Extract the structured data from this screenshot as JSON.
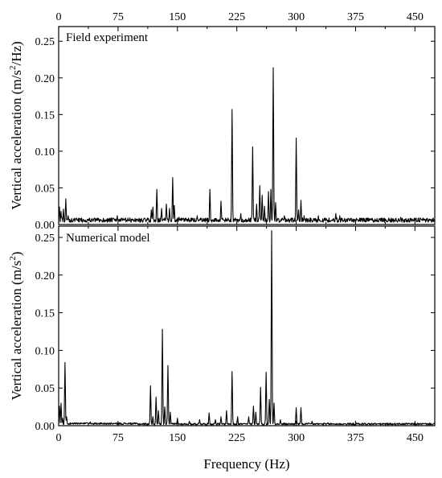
{
  "chart_data": [
    {
      "type": "line",
      "panel_label": "Field experiment",
      "ylabel": "Vertical acceleration (m/s²/Hz)",
      "ylabel_parts": {
        "pre": "Vertical acceleration (m/s",
        "sup": "2",
        "post": "/Hz)"
      },
      "xlim": [
        0,
        475
      ],
      "ylim": [
        0,
        0.27
      ],
      "yticks": [
        0.0,
        0.05,
        0.1,
        0.15,
        0.2,
        0.25
      ],
      "ytick_labels": [
        "0.00",
        "0.05",
        "0.10",
        "0.15",
        "0.20",
        "0.25"
      ],
      "xticks_top": [
        0,
        75,
        150,
        225,
        300,
        375,
        450
      ],
      "xtick_labels_top": [
        "0",
        "75",
        "150",
        "225",
        "300",
        "375",
        "450"
      ],
      "grid": false,
      "series": [
        {
          "peaks": [
            {
              "x": 1,
              "y": 0.024
            },
            {
              "x": 3,
              "y": 0.018
            },
            {
              "x": 6,
              "y": 0.021
            },
            {
              "x": 9,
              "y": 0.035
            },
            {
              "x": 12,
              "y": 0.012
            },
            {
              "x": 22,
              "y": 0.008
            },
            {
              "x": 45,
              "y": 0.007
            },
            {
              "x": 58,
              "y": 0.006
            },
            {
              "x": 74,
              "y": 0.012
            },
            {
              "x": 90,
              "y": 0.007
            },
            {
              "x": 117,
              "y": 0.02
            },
            {
              "x": 119,
              "y": 0.024
            },
            {
              "x": 124,
              "y": 0.048
            },
            {
              "x": 130,
              "y": 0.022
            },
            {
              "x": 136,
              "y": 0.028
            },
            {
              "x": 140,
              "y": 0.022
            },
            {
              "x": 144,
              "y": 0.064
            },
            {
              "x": 146,
              "y": 0.026
            },
            {
              "x": 152,
              "y": 0.01
            },
            {
              "x": 160,
              "y": 0.008
            },
            {
              "x": 175,
              "y": 0.012
            },
            {
              "x": 191,
              "y": 0.048
            },
            {
              "x": 205,
              "y": 0.032
            },
            {
              "x": 219,
              "y": 0.157
            },
            {
              "x": 230,
              "y": 0.015
            },
            {
              "x": 245,
              "y": 0.106
            },
            {
              "x": 250,
              "y": 0.028
            },
            {
              "x": 254,
              "y": 0.053
            },
            {
              "x": 257,
              "y": 0.04
            },
            {
              "x": 260,
              "y": 0.025
            },
            {
              "x": 265,
              "y": 0.045
            },
            {
              "x": 268,
              "y": 0.048
            },
            {
              "x": 271,
              "y": 0.214
            },
            {
              "x": 274,
              "y": 0.03
            },
            {
              "x": 285,
              "y": 0.012
            },
            {
              "x": 300,
              "y": 0.118
            },
            {
              "x": 303,
              "y": 0.02
            },
            {
              "x": 306,
              "y": 0.033
            },
            {
              "x": 310,
              "y": 0.012
            },
            {
              "x": 328,
              "y": 0.012
            },
            {
              "x": 350,
              "y": 0.015
            },
            {
              "x": 355,
              "y": 0.012
            },
            {
              "x": 380,
              "y": 0.008
            },
            {
              "x": 413,
              "y": 0.007
            },
            {
              "x": 432,
              "y": 0.01
            },
            {
              "x": 468,
              "y": 0.007
            }
          ]
        }
      ]
    },
    {
      "type": "line",
      "panel_label": "Numerical model",
      "ylabel": "Vertical acceleration (m/s²)",
      "ylabel_parts": {
        "pre": "Vertical acceleration (m/s",
        "sup": "2",
        "post": ")"
      },
      "xlabel": "Frequency (Hz)",
      "xlim": [
        0,
        475
      ],
      "ylim": [
        0,
        0.265
      ],
      "yticks": [
        0.0,
        0.05,
        0.1,
        0.15,
        0.2,
        0.25
      ],
      "ytick_labels": [
        "0.00",
        "0.05",
        "0.10",
        "0.15",
        "0.20",
        "0.25"
      ],
      "xticks": [
        0,
        75,
        150,
        225,
        300,
        375,
        450
      ],
      "xtick_labels": [
        "0",
        "75",
        "150",
        "225",
        "300",
        "375",
        "450"
      ],
      "grid": false,
      "series": [
        {
          "peaks": [
            {
              "x": 1,
              "y": 0.026
            },
            {
              "x": 3,
              "y": 0.03
            },
            {
              "x": 5,
              "y": 0.01
            },
            {
              "x": 8,
              "y": 0.084
            },
            {
              "x": 10,
              "y": 0.012
            },
            {
              "x": 40,
              "y": 0.005
            },
            {
              "x": 116,
              "y": 0.053
            },
            {
              "x": 119,
              "y": 0.012
            },
            {
              "x": 123,
              "y": 0.038
            },
            {
              "x": 126,
              "y": 0.02
            },
            {
              "x": 131,
              "y": 0.128
            },
            {
              "x": 134,
              "y": 0.025
            },
            {
              "x": 138,
              "y": 0.08
            },
            {
              "x": 141,
              "y": 0.018
            },
            {
              "x": 150,
              "y": 0.01
            },
            {
              "x": 165,
              "y": 0.006
            },
            {
              "x": 178,
              "y": 0.008
            },
            {
              "x": 190,
              "y": 0.017
            },
            {
              "x": 198,
              "y": 0.008
            },
            {
              "x": 205,
              "y": 0.012
            },
            {
              "x": 212,
              "y": 0.02
            },
            {
              "x": 219,
              "y": 0.072
            },
            {
              "x": 226,
              "y": 0.012
            },
            {
              "x": 240,
              "y": 0.012
            },
            {
              "x": 246,
              "y": 0.026
            },
            {
              "x": 249,
              "y": 0.018
            },
            {
              "x": 255,
              "y": 0.051
            },
            {
              "x": 262,
              "y": 0.071
            },
            {
              "x": 266,
              "y": 0.035
            },
            {
              "x": 269,
              "y": 0.259
            },
            {
              "x": 272,
              "y": 0.03
            },
            {
              "x": 280,
              "y": 0.008
            },
            {
              "x": 300,
              "y": 0.024
            },
            {
              "x": 306,
              "y": 0.024
            },
            {
              "x": 320,
              "y": 0.006
            },
            {
              "x": 340,
              "y": 0.004
            }
          ]
        }
      ]
    }
  ]
}
